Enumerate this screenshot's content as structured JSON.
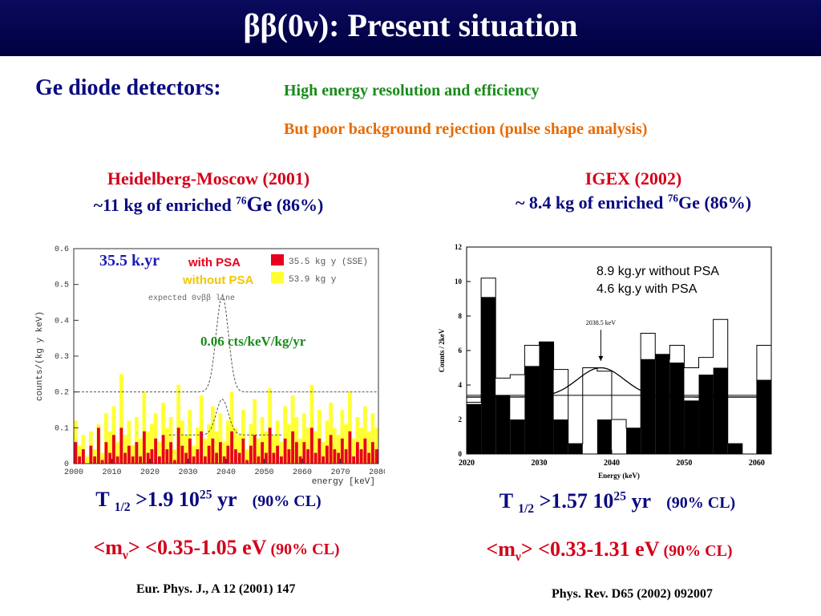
{
  "slide": {
    "title": "ββ(0ν): Present situation",
    "subhead": "Ge diode detectors:",
    "point_green": "High energy resolution and efficiency",
    "point_orange": "But poor background rejection (pulse shape analysis)"
  },
  "left": {
    "heading": "Heidelberg-Moscow (2001)",
    "mass_prefix": "~11 kg of enriched ",
    "mass_iso": "76",
    "mass_el": "Ge",
    "mass_pct": " (86%)",
    "exposure_label": "35.5 k.yr",
    "bg_label": "0.06 cts/keV/kg/yr",
    "t_prefix": "T ",
    "t_sub": "1/2",
    "t_val": " >1.9 10",
    "t_exp": "25",
    "t_unit": " yr",
    "cl": "(90% CL)",
    "m_prefix": "<m",
    "m_sub": "ν",
    "m_val": "> <0.35-1.05 eV",
    "m_cl": " (90% CL)",
    "ref": "Eur. Phys. J., A 12 (2001) 147"
  },
  "right": {
    "heading": "IGEX (2002)",
    "mass_prefix": "~ 8.4 kg of enriched ",
    "mass_iso": "76",
    "mass_el": "Ge",
    "mass_pct": " (86%)",
    "annot1": "8.9 kg.yr without PSA",
    "annot2": "4.6 kg.y with PSA",
    "t_prefix": "T ",
    "t_sub": "1/2",
    "t_val": " >1.57 10",
    "t_exp": "25",
    "t_unit": " yr",
    "cl": "(90% CL)",
    "m_prefix": "<m",
    "m_sub": "ν",
    "m_val": "> <0.33-1.31 eV",
    "m_cl": " (90% CL)",
    "ref": "Phys. Rev. D65 (2002) 092007"
  },
  "chart_data": [
    {
      "type": "bar",
      "ylabel": "counts/(kg y keV)",
      "xlabel": "energy [keV]",
      "xlim": [
        2000,
        2080
      ],
      "ylim": [
        0,
        0.6
      ],
      "xticks": [
        "2000",
        "2010",
        "2020",
        "2030",
        "2040",
        "2050",
        "2060",
        "2070",
        "2080"
      ],
      "yticks": [
        "0",
        "0.1",
        "0.2",
        "0.3",
        "0.4",
        "0.5",
        "0.6"
      ],
      "legend_position": "top-right",
      "colors": {
        "with_psa": "#e8001c",
        "without_psa": "#ffff33"
      },
      "legend": [
        {
          "label_left": "with PSA",
          "label_right": "35.5 kg y (SSE)"
        },
        {
          "label_left": "without PSA",
          "label_right": "53.9 kg y"
        }
      ],
      "annotation": "expected 0νββ line",
      "bin_width": 1,
      "series": [
        {
          "name": "53.9 kg y",
          "values": [
            0.12,
            0.05,
            0.08,
            0.02,
            0.09,
            0.04,
            0.11,
            0.03,
            0.14,
            0.09,
            0.16,
            0.06,
            0.25,
            0.08,
            0.12,
            0.05,
            0.13,
            0.07,
            0.2,
            0.09,
            0.11,
            0.14,
            0.06,
            0.17,
            0.1,
            0.13,
            0.04,
            0.22,
            0.12,
            0.08,
            0.15,
            0.05,
            0.1,
            0.19,
            0.07,
            0.11,
            0.16,
            0.09,
            0.14,
            0.06,
            0.12,
            0.2,
            0.1,
            0.08,
            0.15,
            0.04,
            0.11,
            0.18,
            0.07,
            0.13,
            0.09,
            0.21,
            0.08,
            0.12,
            0.06,
            0.16,
            0.11,
            0.19,
            0.13,
            0.07,
            0.14,
            0.1,
            0.22,
            0.09,
            0.15,
            0.06,
            0.12,
            0.17,
            0.1,
            0.08,
            0.15,
            0.11,
            0.2,
            0.07,
            0.13,
            0.1,
            0.16,
            0.09,
            0.14,
            0.1
          ]
        },
        {
          "name": "35.5 kg y (SSE)",
          "values": [
            0.06,
            0.02,
            0.04,
            0.0,
            0.05,
            0.02,
            0.1,
            0.01,
            0.06,
            0.03,
            0.08,
            0.02,
            0.1,
            0.03,
            0.05,
            0.02,
            0.06,
            0.02,
            0.09,
            0.03,
            0.04,
            0.07,
            0.02,
            0.08,
            0.04,
            0.06,
            0.01,
            0.1,
            0.05,
            0.03,
            0.07,
            0.02,
            0.04,
            0.09,
            0.02,
            0.05,
            0.07,
            0.03,
            0.06,
            0.02,
            0.05,
            0.09,
            0.04,
            0.03,
            0.07,
            0.01,
            0.05,
            0.08,
            0.02,
            0.06,
            0.03,
            0.1,
            0.03,
            0.05,
            0.02,
            0.07,
            0.04,
            0.09,
            0.06,
            0.02,
            0.06,
            0.04,
            0.1,
            0.03,
            0.07,
            0.02,
            0.05,
            0.08,
            0.04,
            0.03,
            0.07,
            0.04,
            0.09,
            0.02,
            0.06,
            0.04,
            0.07,
            0.03,
            0.06,
            0.04
          ]
        }
      ]
    },
    {
      "type": "bar",
      "ylabel": "Counts / 2keV",
      "xlabel": "Energy (keV)",
      "xlim": [
        2020,
        2062
      ],
      "ylim": [
        0,
        12
      ],
      "xticks": [
        "2020",
        "2030",
        "2040",
        "2050",
        "2060"
      ],
      "yticks": [
        "0",
        "2",
        "4",
        "6",
        "8",
        "10",
        "12"
      ],
      "annotation": "2038.5 keV",
      "bin_width": 2,
      "x": [
        2020,
        2022,
        2024,
        2026,
        2028,
        2030,
        2032,
        2034,
        2036,
        2038,
        2040,
        2042,
        2044,
        2046,
        2048,
        2050,
        2052,
        2054,
        2056,
        2058,
        2060
      ],
      "series": [
        {
          "name": "8.9 kg.yr without PSA",
          "values": [
            3,
            10.2,
            4.4,
            4.6,
            6.3,
            6.5,
            4.9,
            0.6,
            5,
            4.8,
            2,
            1.5,
            7,
            5.5,
            6.3,
            5,
            5.6,
            7.8,
            0.6,
            0,
            6.3
          ]
        },
        {
          "name": "4.6 kg.y with PSA",
          "values": [
            2.9,
            9.1,
            3.4,
            2,
            5.1,
            6.5,
            2,
            0.6,
            0,
            2,
            0,
            1.5,
            5.5,
            5.8,
            5.3,
            3.1,
            4.6,
            5,
            0.6,
            0,
            4.3
          ]
        }
      ]
    }
  ]
}
